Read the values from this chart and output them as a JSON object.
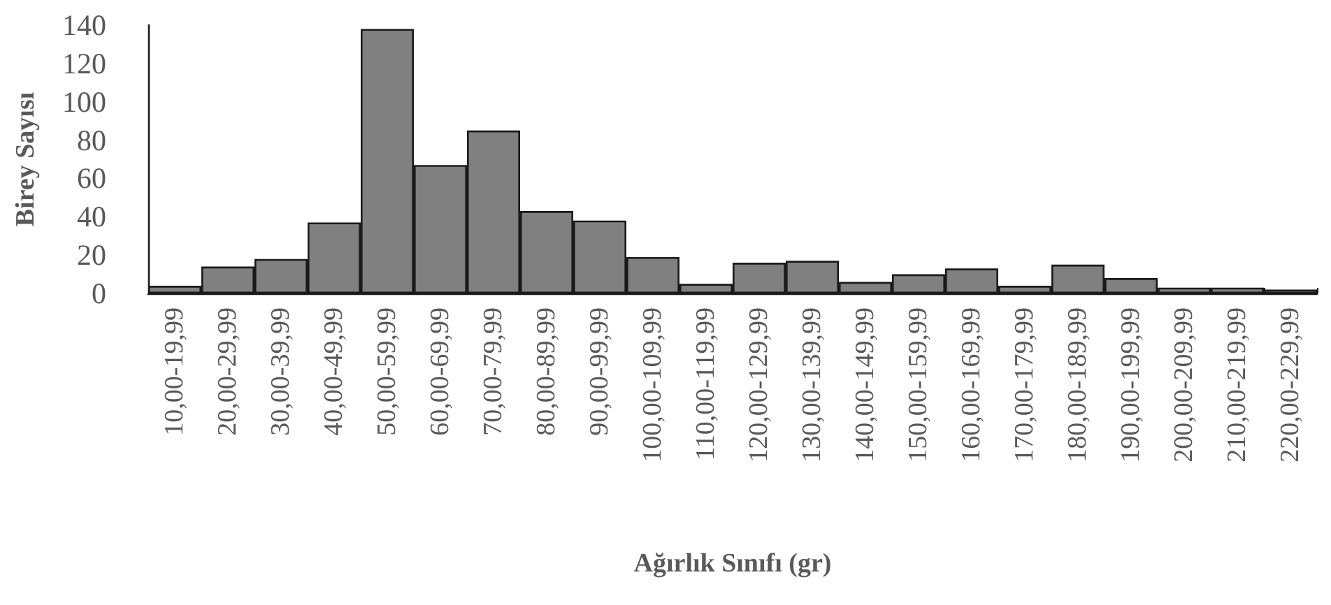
{
  "chart_data": {
    "type": "bar",
    "xlabel": "Ağırlık Sınıfı (gr)",
    "ylabel": "Birey Sayısı",
    "categories": [
      "10,00-19,99",
      "20,00-29,99",
      "30,00-39,99",
      "40,00-49,99",
      "50,00-59,99",
      "60,00-69,99",
      "70,00-79,99",
      "80,00-89,99",
      "90,00-99,99",
      "100,00-109,99",
      "110,00-119,99",
      "120,00-129,99",
      "130,00-139,99",
      "140,00-149,99",
      "150,00-159,99",
      "160,00-169,99",
      "170,00-179,99",
      "180,00-189,99",
      "190,00-199,99",
      "200,00-209,99",
      "210,00-219,99",
      "220,00-229,99"
    ],
    "values": [
      4,
      14,
      18,
      37,
      138,
      67,
      85,
      43,
      38,
      19,
      5,
      16,
      17,
      6,
      10,
      13,
      4,
      15,
      8,
      3,
      3,
      2
    ],
    "color": "#808080",
    "ylim": [
      0,
      140
    ],
    "yticks": [
      0,
      20,
      40,
      60,
      80,
      100,
      120,
      140
    ],
    "grid": false
  }
}
